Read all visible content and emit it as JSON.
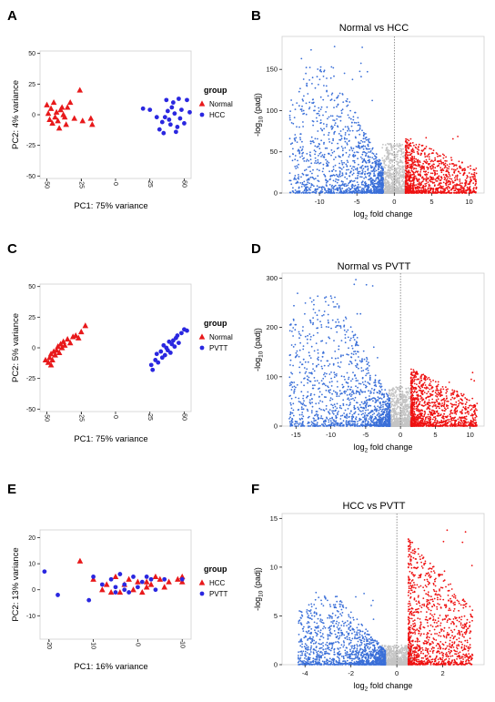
{
  "figure": {
    "panels": [
      {
        "letter": "A",
        "kind": "pca",
        "xlabel": "PC1: 75% variance",
        "ylabel": "PC2: 4% variance",
        "legend_title": "group",
        "legend": [
          "Normal",
          "HCC"
        ]
      },
      {
        "letter": "B",
        "kind": "volcano",
        "title": "Normal vs HCC",
        "xlabel": "log2 fold change",
        "ylabel": "-log10 (padj)"
      },
      {
        "letter": "C",
        "kind": "pca",
        "xlabel": "PC1: 75% variance",
        "ylabel": "PC2: 5% variance",
        "legend_title": "group",
        "legend": [
          "Normal",
          "PVTT"
        ]
      },
      {
        "letter": "D",
        "kind": "volcano",
        "title": "Normal vs PVTT",
        "xlabel": "log2 fold change",
        "ylabel": "-log10 (padj)"
      },
      {
        "letter": "E",
        "kind": "pca",
        "xlabel": "PC1: 16% variance",
        "ylabel": "PC2: 13% variance",
        "legend_title": "group",
        "legend": [
          "HCC",
          "PVTT"
        ]
      },
      {
        "letter": "F",
        "kind": "volcano",
        "title": "HCC vs PVTT",
        "xlabel": "log2 fold change",
        "ylabel": "-log10 (padj)"
      }
    ]
  },
  "colors": {
    "red": "#e8191b",
    "blue": "#2a27e0",
    "vblue": "#3a6fd8",
    "vred": "#ee1111",
    "grey": "#c4c4c4",
    "axis": "#222222",
    "frame": "#cfcfcf"
  },
  "chart_data": [
    {
      "type": "scatter",
      "panel": "A",
      "xlabel": "PC1: 75% variance",
      "ylabel": "PC2: 4% variance",
      "xlim": [
        -55,
        55
      ],
      "ylim": [
        -52,
        52
      ],
      "xticks": [
        -50,
        -25,
        0,
        25,
        50
      ],
      "yticks": [
        -50,
        -25,
        0,
        25,
        50
      ],
      "legend_title": "group",
      "series": [
        {
          "name": "Normal",
          "marker": "triangle",
          "color": "#e8191b",
          "points": [
            [
              -50,
              8
            ],
            [
              -47,
              5
            ],
            [
              -45,
              10
            ],
            [
              -43,
              2
            ],
            [
              -44,
              -2
            ],
            [
              -48,
              -4
            ],
            [
              -46,
              -7
            ],
            [
              -42,
              -5
            ],
            [
              -40,
              4
            ],
            [
              -38,
              0
            ],
            [
              -37,
              -2
            ],
            [
              -35,
              6
            ],
            [
              -36,
              -8
            ],
            [
              -33,
              10
            ],
            [
              -41,
              -11
            ],
            [
              -49,
              1
            ],
            [
              -30,
              -3
            ],
            [
              -26,
              20
            ],
            [
              -24,
              -5
            ],
            [
              -18,
              -3
            ],
            [
              -17,
              -8
            ],
            [
              -39,
              6
            ]
          ]
        },
        {
          "name": "HCC",
          "marker": "circle",
          "color": "#2a27e0",
          "points": [
            [
              20,
              5
            ],
            [
              25,
              4
            ],
            [
              30,
              -2
            ],
            [
              32,
              -12
            ],
            [
              34,
              -6
            ],
            [
              35,
              -15
            ],
            [
              36,
              -2
            ],
            [
              37,
              12
            ],
            [
              38,
              3
            ],
            [
              39,
              -4
            ],
            [
              40,
              -8
            ],
            [
              41,
              6
            ],
            [
              42,
              10
            ],
            [
              43,
              1
            ],
            [
              44,
              -14
            ],
            [
              45,
              -10
            ],
            [
              46,
              13
            ],
            [
              47,
              -3
            ],
            [
              48,
              4
            ],
            [
              50,
              -7
            ],
            [
              52,
              12
            ],
            [
              54,
              2
            ]
          ]
        }
      ]
    },
    {
      "type": "scatter",
      "panel": "B",
      "title": "Normal vs HCC",
      "xlabel": "log2 fold change",
      "ylabel": "-log10 (padj)",
      "xlim": [
        -15,
        12
      ],
      "ylim": [
        0,
        190
      ],
      "xticks": [
        -10,
        -5,
        0,
        5,
        10
      ],
      "yticks": [
        0,
        50,
        100,
        150
      ],
      "reference_line_x": 0,
      "series": [
        {
          "name": "",
          "color": "#3a6fd8",
          "distribution": "down-regulated",
          "x_range": [
            -14,
            -1.5
          ],
          "y_range": [
            0,
            180
          ]
        },
        {
          "name": "",
          "color": "#c4c4c4",
          "distribution": "not significant",
          "x_range": [
            -1.5,
            1.5
          ],
          "y_range": [
            0,
            60
          ]
        },
        {
          "name": "",
          "color": "#ee1111",
          "distribution": "up-regulated",
          "x_range": [
            1.5,
            11
          ],
          "y_range": [
            0,
            75
          ]
        }
      ]
    },
    {
      "type": "scatter",
      "panel": "C",
      "xlabel": "PC1: 75% variance",
      "ylabel": "PC2: 5% variance",
      "xlim": [
        -55,
        55
      ],
      "ylim": [
        -52,
        52
      ],
      "xticks": [
        -50,
        -25,
        0,
        25,
        50
      ],
      "yticks": [
        -50,
        -25,
        0,
        25,
        50
      ],
      "legend_title": "group",
      "series": [
        {
          "name": "Normal",
          "marker": "triangle",
          "color": "#e8191b",
          "points": [
            [
              -51,
              -10
            ],
            [
              -49,
              -12
            ],
            [
              -48,
              -8
            ],
            [
              -47,
              -5
            ],
            [
              -46,
              -10
            ],
            [
              -45,
              -3
            ],
            [
              -44,
              -6
            ],
            [
              -43,
              -2
            ],
            [
              -42,
              1
            ],
            [
              -41,
              -4
            ],
            [
              -40,
              3
            ],
            [
              -39,
              0
            ],
            [
              -38,
              5
            ],
            [
              -37,
              2
            ],
            [
              -35,
              7
            ],
            [
              -33,
              4
            ],
            [
              -31,
              9
            ],
            [
              -29,
              10
            ],
            [
              -27,
              8
            ],
            [
              -25,
              13
            ],
            [
              -22,
              18
            ],
            [
              -47,
              -14
            ]
          ]
        },
        {
          "name": "PVTT",
          "marker": "circle",
          "color": "#2a27e0",
          "points": [
            [
              26,
              -14
            ],
            [
              27,
              -18
            ],
            [
              29,
              -10
            ],
            [
              30,
              -5
            ],
            [
              31,
              -12
            ],
            [
              33,
              -3
            ],
            [
              34,
              -8
            ],
            [
              35,
              2
            ],
            [
              36,
              -6
            ],
            [
              37,
              0
            ],
            [
              38,
              -2
            ],
            [
              39,
              5
            ],
            [
              40,
              -4
            ],
            [
              41,
              3
            ],
            [
              42,
              6
            ],
            [
              43,
              1
            ],
            [
              44,
              8
            ],
            [
              45,
              10
            ],
            [
              46,
              4
            ],
            [
              48,
              12
            ],
            [
              50,
              15
            ],
            [
              52,
              14
            ]
          ]
        }
      ]
    },
    {
      "type": "scatter",
      "panel": "D",
      "title": "Normal vs PVTT",
      "xlabel": "log2 fold change",
      "ylabel": "-log10 (padj)",
      "xlim": [
        -17,
        12
      ],
      "ylim": [
        0,
        310
      ],
      "xticks": [
        -15,
        -10,
        -5,
        0,
        5,
        10
      ],
      "yticks": [
        0,
        100,
        200,
        300
      ],
      "reference_line_x": 0,
      "series": [
        {
          "name": "",
          "color": "#3a6fd8",
          "distribution": "down-regulated",
          "x_range": [
            -16,
            -1.5
          ],
          "y_range": [
            0,
            305
          ]
        },
        {
          "name": "",
          "color": "#c4c4c4",
          "distribution": "not significant",
          "x_range": [
            -1.5,
            1.5
          ],
          "y_range": [
            0,
            80
          ]
        },
        {
          "name": "",
          "color": "#ee1111",
          "distribution": "up-regulated",
          "x_range": [
            1.5,
            11
          ],
          "y_range": [
            0,
            130
          ]
        }
      ]
    },
    {
      "type": "scatter",
      "panel": "E",
      "xlabel": "PC1: 16% variance",
      "ylabel": "PC2: 13% variance",
      "xlim": [
        -22,
        12
      ],
      "ylim": [
        -19,
        23
      ],
      "xticks": [
        -20,
        -10,
        0,
        10
      ],
      "yticks": [
        -10,
        0,
        10,
        20
      ],
      "legend_title": "group",
      "series": [
        {
          "name": "HCC",
          "marker": "triangle",
          "color": "#e8191b",
          "points": [
            [
              -13,
              11
            ],
            [
              -10,
              4
            ],
            [
              -7,
              2
            ],
            [
              -6,
              -1
            ],
            [
              -5,
              5
            ],
            [
              -3,
              2
            ],
            [
              -2,
              4
            ],
            [
              -1,
              0
            ],
            [
              0,
              3
            ],
            [
              1,
              -1
            ],
            [
              2,
              3
            ],
            [
              3,
              2
            ],
            [
              4,
              5
            ],
            [
              5,
              4
            ],
            [
              6,
              1
            ],
            [
              7,
              3
            ],
            [
              9,
              4
            ],
            [
              10,
              5
            ],
            [
              -4,
              -1
            ],
            [
              -8,
              0
            ],
            [
              2,
              1
            ],
            [
              10,
              3
            ]
          ]
        },
        {
          "name": "PVTT",
          "marker": "circle",
          "color": "#2a27e0",
          "points": [
            [
              -21,
              7
            ],
            [
              -18,
              -2
            ],
            [
              -11,
              -4
            ],
            [
              -10,
              5
            ],
            [
              -8,
              2
            ],
            [
              -6,
              4
            ],
            [
              -5,
              1
            ],
            [
              -4,
              6
            ],
            [
              -3,
              2
            ],
            [
              -2,
              -1
            ],
            [
              -1,
              5
            ],
            [
              0,
              1
            ],
            [
              1,
              3
            ],
            [
              2,
              5
            ],
            [
              3,
              4
            ],
            [
              4,
              0
            ],
            [
              6,
              4
            ],
            [
              10,
              4
            ],
            [
              -5,
              -1
            ],
            [
              -3,
              0
            ]
          ]
        }
      ]
    },
    {
      "type": "scatter",
      "panel": "F",
      "title": "HCC vs PVTT",
      "xlabel": "log2 fold change",
      "ylabel": "-log10 (padj)",
      "xlim": [
        -5,
        3.8
      ],
      "ylim": [
        0,
        15.5
      ],
      "xticks": [
        -4,
        -2,
        0,
        2
      ],
      "yticks": [
        0,
        5,
        10,
        15
      ],
      "reference_line_x": 0,
      "series": [
        {
          "name": "",
          "color": "#3a6fd8",
          "distribution": "down-regulated",
          "x_range": [
            -4.3,
            -0.5
          ],
          "y_range": [
            0,
            8
          ]
        },
        {
          "name": "",
          "color": "#c4c4c4",
          "distribution": "not significant",
          "x_range": [
            -0.6,
            0.6
          ],
          "y_range": [
            0,
            2
          ]
        },
        {
          "name": "",
          "color": "#ee1111",
          "distribution": "up-regulated",
          "x_range": [
            0.5,
            3.3
          ],
          "y_range": [
            0,
            14.5
          ]
        }
      ]
    }
  ]
}
